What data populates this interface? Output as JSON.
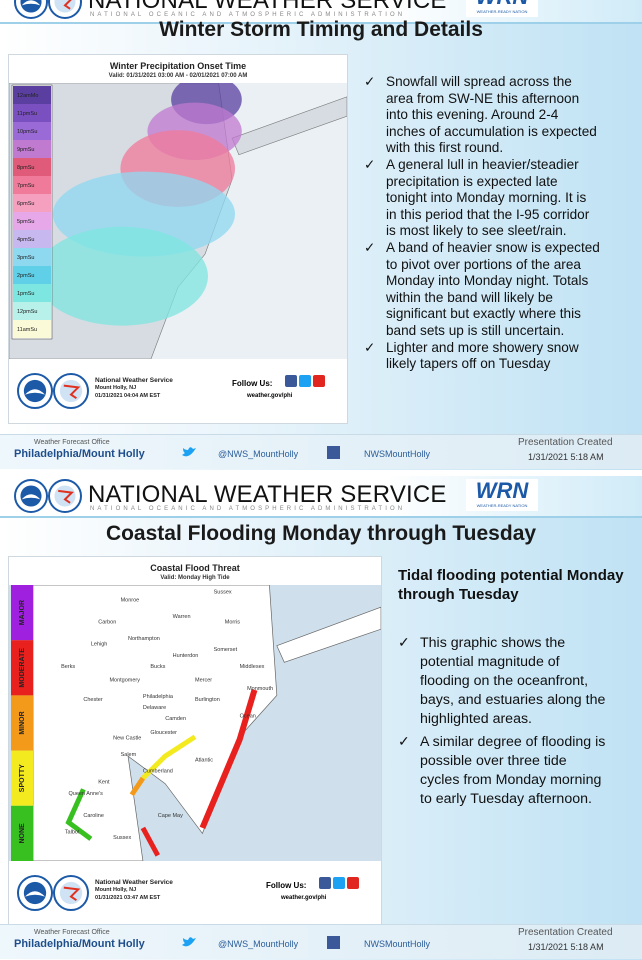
{
  "slides": [
    {
      "header": {
        "agency": "NATIONAL WEATHER SERVICE",
        "subtitle": "NATIONAL OCEANIC AND ATMOSPHERIC ADMINISTRATION",
        "wrn": "WRN",
        "wrn_sub": "WEATHER-READY NATION"
      },
      "title": "Winter Storm Timing and Details",
      "map": {
        "title": "Winter Precipitation Onset Time",
        "valid": "Valid: 01/31/2021 03:00 AM - 02/01/2021 07:00 AM",
        "scale": [
          {
            "label": "12amMo",
            "color": "#5a3fa0"
          },
          {
            "label": "11pmSu",
            "color": "#7a4fc0"
          },
          {
            "label": "10pmSu",
            "color": "#9a6ad6"
          },
          {
            "label": "9pmSu",
            "color": "#c07ad0"
          },
          {
            "label": "8pmSu",
            "color": "#e05a7a"
          },
          {
            "label": "7pmSu",
            "color": "#f07a9a"
          },
          {
            "label": "6pmSu",
            "color": "#f6a0c0"
          },
          {
            "label": "5pmSu",
            "color": "#e6a8e8"
          },
          {
            "label": "4pmSu",
            "color": "#c8b8f0"
          },
          {
            "label": "3pmSu",
            "color": "#8ed8f0"
          },
          {
            "label": "2pmSu",
            "color": "#60d0e8"
          },
          {
            "label": "1pmSu",
            "color": "#7ee6e0"
          },
          {
            "label": "12pmSu",
            "color": "#b8f0ea"
          },
          {
            "label": "11amSu",
            "color": "#fafad8"
          }
        ],
        "office": [
          "National Weather Service",
          "Mount Holly, NJ",
          "01/31/2021 04:04 AM EST"
        ],
        "follow": "Follow Us:",
        "url": "weather.gov/phi"
      },
      "bullets": [
        "Snowfall will spread across the area from SW-NE this afternoon into this evening. Around 2-4 inches of accumulation is expected with this first round.",
        "A general lull in heavier/steadier precipitation is expected late tonight into Monday morning. It is in this period that the I-95 corridor is most likely to see sleet/rain.",
        "A band of heavier snow is expected to pivot over portions of the area Monday into Monday night. Totals within the band will likely be significant but exactly where this band sets up is still uncertain.",
        "Lighter and more showery snow likely tapers off on Tuesday"
      ],
      "footer": {
        "office_label": "Weather Forecast Office",
        "office": "Philadelphia/Mount Holly",
        "twitter": "@NWS_MountHolly",
        "facebook": "NWSMountHolly",
        "created_label": "Presentation Created",
        "created": "1/31/2021 5:18 AM"
      }
    },
    {
      "header": {
        "agency": "NATIONAL WEATHER SERVICE",
        "subtitle": "NATIONAL OCEANIC AND ATMOSPHERIC ADMINISTRATION",
        "wrn": "WRN",
        "wrn_sub": "WEATHER-READY NATION"
      },
      "title": "Coastal Flooding Monday through Tuesday",
      "map": {
        "title": "Coastal Flood Threat",
        "valid": "Valid: Monday High Tide",
        "scale": [
          {
            "label": "MAJOR",
            "color": "#a020e0"
          },
          {
            "label": "MODERATE",
            "color": "#e8201e"
          },
          {
            "label": "MINOR",
            "color": "#f39a1a"
          },
          {
            "label": "SPOTTY",
            "color": "#f3ea20"
          },
          {
            "label": "NONE",
            "color": "#38c020"
          }
        ],
        "places": [
          "Monroe",
          "Sussex",
          "Carbon",
          "Warren",
          "Morris",
          "Northampton",
          "Lehigh",
          "Somerset",
          "Hunterdon",
          "Berks",
          "Bucks",
          "Middlesex",
          "Montgomery",
          "Mercer",
          "Monmouth",
          "Chester",
          "Philadelphia",
          "Burlington",
          "Delaware",
          "Ocean",
          "Camden",
          "Gloucester",
          "New Castle",
          "Salem",
          "Atlantic",
          "Cumberland",
          "Kent",
          "Queen Anne's",
          "Caroline",
          "Talbot",
          "Cape May",
          "Sussex"
        ],
        "office": [
          "National Weather Service",
          "Mount Holly, NJ",
          "01/31/2021 03:47 AM EST"
        ],
        "follow": "Follow Us:",
        "url": "weather.gov/phi"
      },
      "heading": "Tidal flooding potential Monday through Tuesday",
      "bullets": [
        "This graphic shows the potential magnitude of flooding on the oceanfront, bays, and estuaries along the highlighted areas.",
        "A similar degree of flooding is possible over three tide cycles from Monday morning to early Tuesday afternoon."
      ],
      "footer": {
        "office_label": "Weather Forecast Office",
        "office": "Philadelphia/Mount Holly",
        "twitter": "@NWS_MountHolly",
        "facebook": "NWSMountHolly",
        "created_label": "Presentation Created",
        "created": "1/31/2021 5:18 AM"
      }
    }
  ]
}
